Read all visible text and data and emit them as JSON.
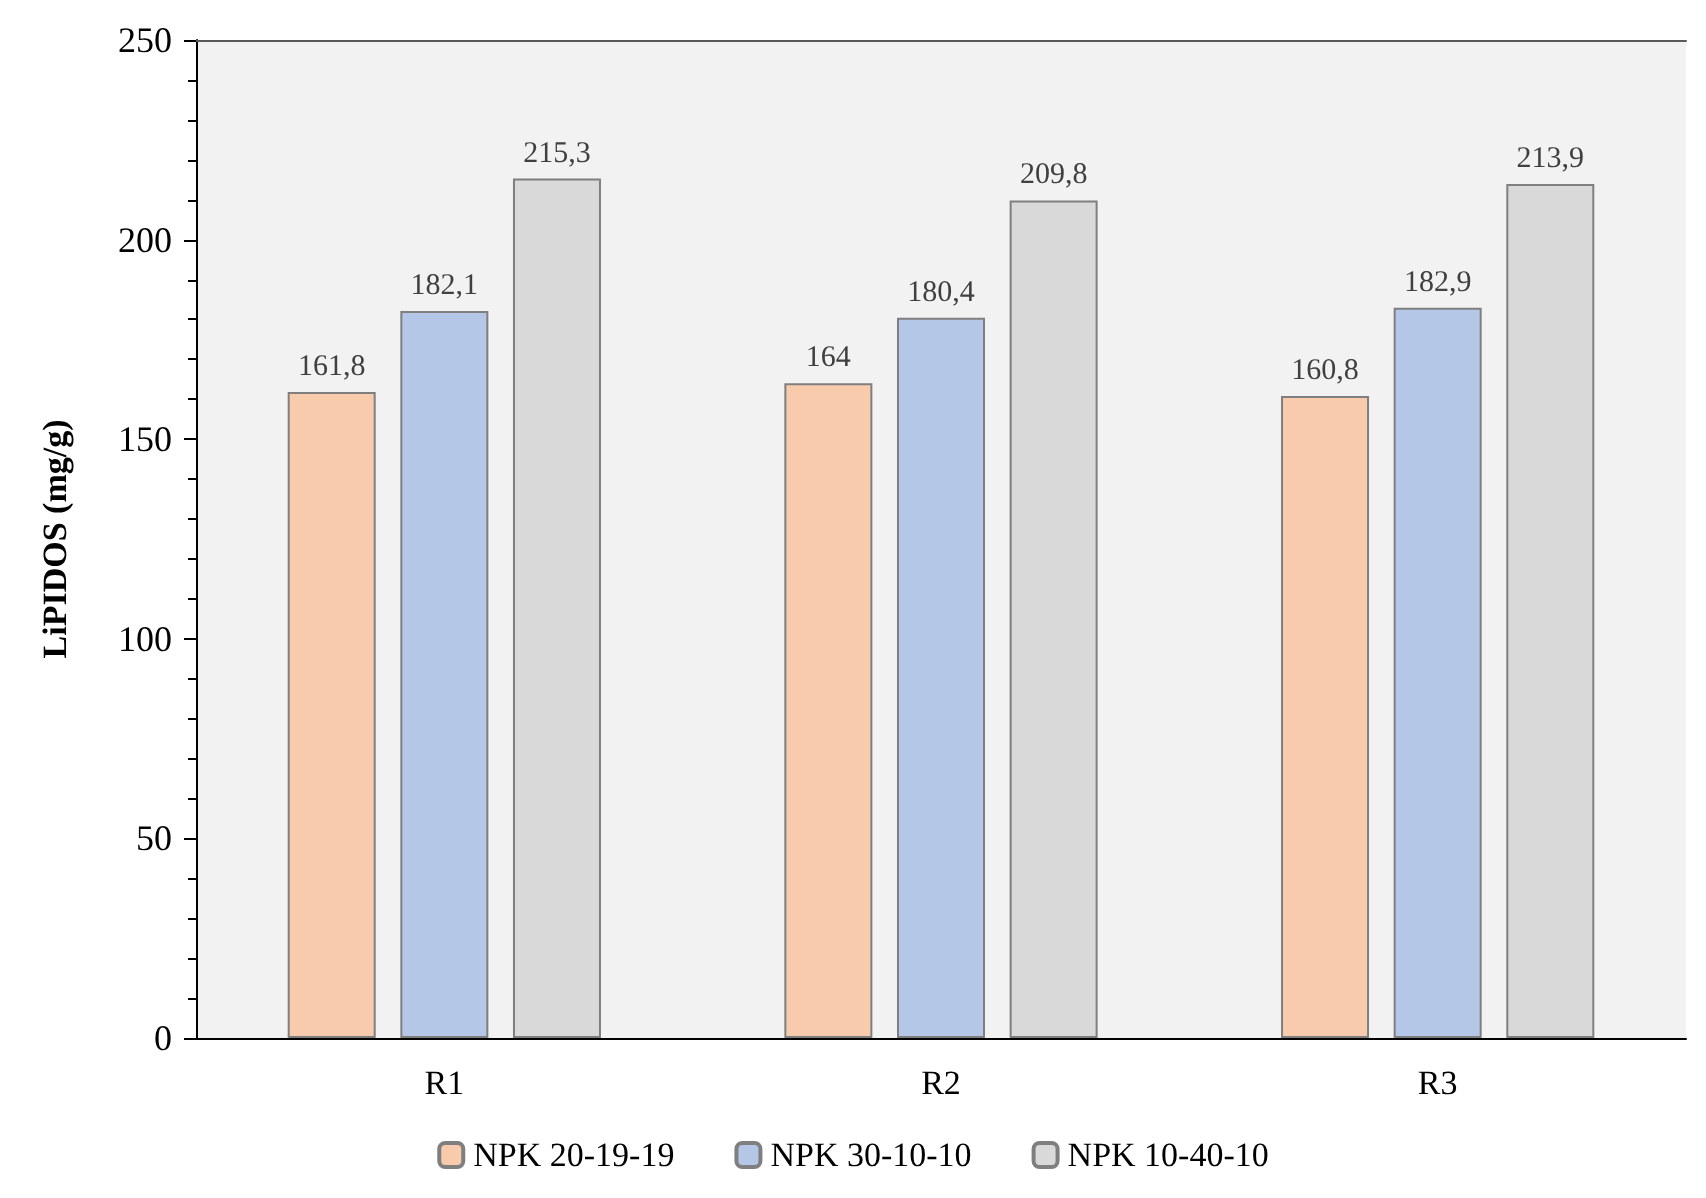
{
  "chart_data": {
    "type": "bar",
    "ylabel": "LiPIDOS (mg/g)",
    "categories": [
      "R1",
      "R2",
      "R3"
    ],
    "series": [
      {
        "name": "NPK 20-19-19",
        "color": "#f8cbad",
        "values": [
          161.8,
          164,
          160.8
        ],
        "value_labels": [
          "161,8",
          "164",
          "160,8"
        ]
      },
      {
        "name": "NPK 30-10-10",
        "color": "#b4c7e7",
        "values": [
          182.1,
          180.4,
          182.9
        ],
        "value_labels": [
          "182,1",
          "180,4",
          "182,9"
        ]
      },
      {
        "name": "NPK 10-40-10",
        "color": "#d9d9d9",
        "values": [
          215.3,
          209.8,
          213.9
        ],
        "value_labels": [
          "215,3",
          "209,8",
          "213,9"
        ]
      }
    ],
    "ylim": [
      0,
      250
    ],
    "yticks": [
      0,
      50,
      100,
      150,
      200,
      250
    ],
    "grid": false,
    "legend": "bottom"
  }
}
